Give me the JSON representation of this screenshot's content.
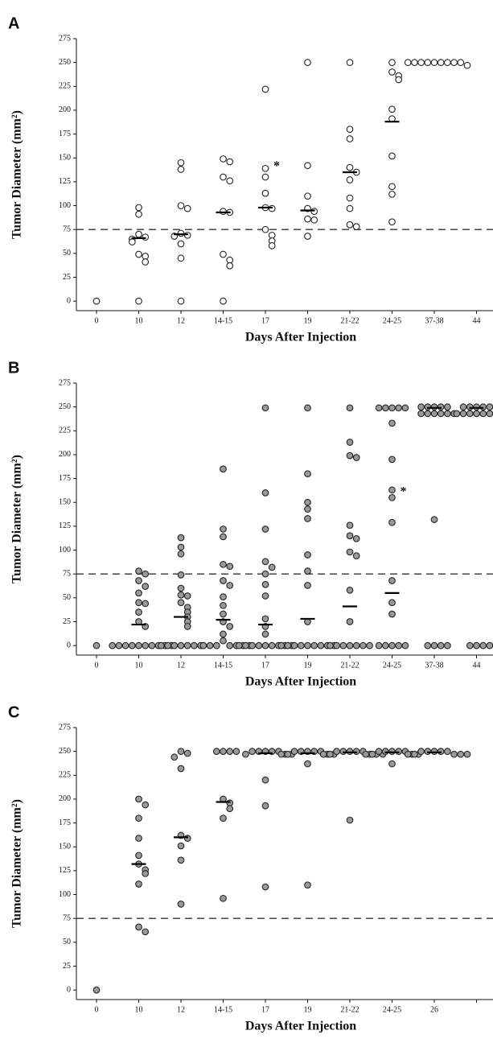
{
  "chart_data": [
    {
      "type": "scatter",
      "panel_label": "A",
      "ylabel": "Tumor Diameter (mm²)",
      "xlabel": "Days After Injection",
      "categories": [
        "0",
        "10",
        "12",
        "14-15",
        "17",
        "19",
        "21-22",
        "24-25",
        "37-38",
        "44"
      ],
      "points": [
        [
          0
        ],
        [
          98,
          91,
          70,
          67,
          65,
          62,
          49,
          47,
          41,
          0
        ],
        [
          145,
          138,
          100,
          97,
          71,
          69,
          68,
          60,
          45,
          0
        ],
        [
          149,
          146,
          130,
          126,
          94,
          93,
          49,
          43,
          37,
          0
        ],
        [
          222,
          139,
          130,
          113,
          98,
          97,
          75,
          69,
          63,
          58
        ],
        [
          250,
          142,
          110,
          97,
          94,
          86,
          85,
          68
        ],
        [
          250,
          180,
          170,
          140,
          135,
          127,
          108,
          97,
          80,
          78
        ],
        [
          250,
          240,
          236,
          232,
          201,
          191,
          152,
          120,
          112,
          83
        ],
        [
          250,
          250,
          250,
          250,
          250,
          250,
          250,
          250,
          250,
          247
        ],
        []
      ],
      "medians": [
        null,
        66,
        70,
        93,
        98,
        95,
        135,
        188,
        null,
        null
      ],
      "marker_fill": "#ffffff",
      "reference_line": 75,
      "annotations": [
        {
          "text": "*",
          "category": 4,
          "value": 143
        }
      ],
      "ylim": [
        -10,
        275
      ],
      "yticks": [
        0,
        25,
        50,
        75,
        100,
        125,
        150,
        175,
        200,
        225,
        250,
        275
      ]
    },
    {
      "type": "scatter",
      "panel_label": "B",
      "ylabel": "Tumor Diameter (mm²)",
      "xlabel": "Days After Injection",
      "categories": [
        "0",
        "10",
        "12",
        "14-15",
        "17",
        "19",
        "21-22",
        "24-25",
        "37-38",
        "44"
      ],
      "points": [
        [
          0
        ],
        [
          78,
          75,
          68,
          62,
          55,
          45,
          44,
          35,
          25,
          20,
          0,
          0,
          0,
          0,
          0,
          0,
          0,
          0,
          0,
          0
        ],
        [
          113,
          103,
          96,
          74,
          60,
          53,
          52,
          45,
          40,
          35,
          30,
          25,
          20,
          0,
          0,
          0,
          0,
          0,
          0,
          0
        ],
        [
          185,
          122,
          114,
          85,
          83,
          68,
          63,
          51,
          42,
          33,
          25,
          20,
          12,
          5,
          0,
          0,
          0,
          0,
          0,
          0,
          0
        ],
        [
          249,
          160,
          122,
          88,
          82,
          75,
          64,
          52,
          28,
          20,
          12,
          0,
          0,
          0,
          0,
          0,
          0,
          0,
          0,
          0
        ],
        [
          249,
          180,
          150,
          143,
          133,
          95,
          78,
          63,
          25,
          0,
          0,
          0,
          0,
          0,
          0,
          0,
          0,
          0
        ],
        [
          249,
          213,
          199,
          197,
          126,
          115,
          112,
          98,
          94,
          58,
          25,
          0,
          0,
          0,
          0,
          0,
          0,
          0
        ],
        [
          249,
          249,
          249,
          249,
          249,
          233,
          195,
          163,
          155,
          129,
          68,
          45,
          33,
          0,
          0,
          0,
          0,
          0
        ],
        [
          250,
          250,
          250,
          250,
          250,
          243,
          243,
          243,
          243,
          243,
          243,
          132,
          0,
          0,
          0,
          0
        ],
        [
          250,
          250,
          250,
          250,
          250,
          243,
          243,
          243,
          243,
          243,
          243,
          243,
          0,
          0,
          0,
          0
        ]
      ],
      "medians": [
        null,
        22,
        30,
        27,
        22,
        28,
        41,
        55,
        249,
        249
      ],
      "marker_fill": "#9a9a9a",
      "reference_line": 75,
      "annotations": [
        {
          "text": "*",
          "category": 7,
          "value": 163
        }
      ],
      "ylim": [
        -10,
        275
      ],
      "yticks": [
        0,
        25,
        50,
        75,
        100,
        125,
        150,
        175,
        200,
        225,
        250,
        275
      ]
    },
    {
      "type": "scatter",
      "panel_label": "C",
      "ylabel": "Tumor Diameter (mm²)",
      "xlabel": "Days After Injection",
      "categories": [
        "0",
        "10",
        "12",
        "14-15",
        "17",
        "19",
        "21-22",
        "24-25",
        "26",
        null
      ],
      "points": [
        [
          0
        ],
        [
          200,
          194,
          180,
          159,
          141,
          132,
          126,
          122,
          111,
          66,
          61
        ],
        [
          250,
          248,
          244,
          232,
          162,
          159,
          151,
          136,
          90
        ],
        [
          250,
          250,
          250,
          250,
          200,
          196,
          190,
          180,
          96
        ],
        [
          250,
          250,
          250,
          250,
          250,
          247,
          247,
          247,
          220,
          193,
          108
        ],
        [
          250,
          250,
          250,
          250,
          250,
          247,
          247,
          247,
          247,
          237,
          110
        ],
        [
          250,
          250,
          250,
          250,
          250,
          247,
          247,
          247,
          247,
          247,
          178
        ],
        [
          250,
          250,
          250,
          250,
          250,
          247,
          247,
          247,
          247,
          237
        ],
        [
          250,
          250,
          250,
          250,
          250,
          247,
          247,
          247,
          247,
          247
        ],
        []
      ],
      "medians": [
        null,
        132,
        160,
        197,
        248,
        248,
        249,
        249,
        249,
        null
      ],
      "marker_fill": "#9a9a9a",
      "reference_line": 75,
      "annotations": [],
      "ylim": [
        -10,
        275
      ],
      "yticks": [
        0,
        25,
        50,
        75,
        100,
        125,
        150,
        175,
        200,
        225,
        250,
        275
      ]
    }
  ]
}
